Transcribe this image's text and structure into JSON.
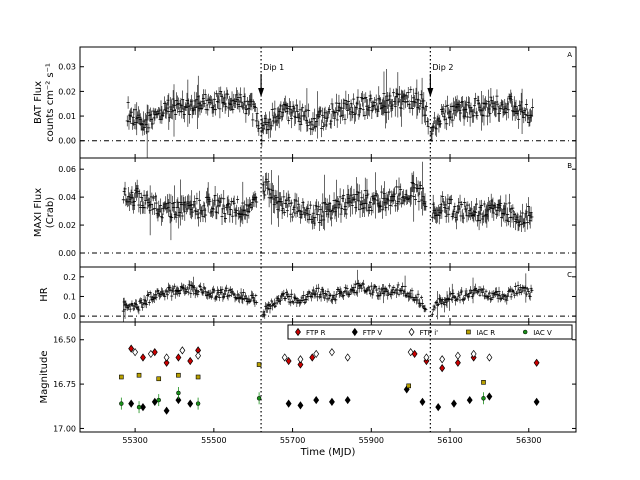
{
  "chart_data": {
    "type": "scatter",
    "xlabel": "Time (MJD)",
    "x_ticks": [
      55300,
      55500,
      55700,
      55900,
      56100,
      56300
    ],
    "xlim": [
      55160,
      56420
    ],
    "dips": [
      {
        "label": "Dip 1",
        "x": 55620
      },
      {
        "label": "Dip 2",
        "x": 56050
      }
    ],
    "panels": [
      {
        "id": "bat",
        "letter": "A",
        "ylabel": [
          "BAT Flux",
          "counts cm⁻² s⁻¹"
        ],
        "ylim": [
          -0.007,
          0.038
        ],
        "y_ticks": [
          "0.00",
          "0.01",
          "0.02",
          "0.03"
        ],
        "baseline": 0.0,
        "segments": [
          {
            "x": [
              55280,
              55320,
              55360,
              55400,
              55440,
              55480,
              55520,
              55560,
              55600,
              55615
            ],
            "y": [
              0.012,
              0.006,
              0.012,
              0.013,
              0.014,
              0.015,
              0.016,
              0.017,
              0.012,
              0.007
            ]
          },
          {
            "x": [
              55622,
              55650,
              55680,
              55720,
              55760,
              55800,
              55840,
              55880,
              55920,
              55960,
              56000,
              56030,
              56045
            ],
            "y": [
              0.003,
              0.01,
              0.012,
              0.01,
              0.008,
              0.011,
              0.013,
              0.014,
              0.015,
              0.016,
              0.017,
              0.016,
              0.008
            ]
          },
          {
            "x": [
              56052,
              56080,
              56120,
              56160,
              56200,
              56240,
              56280,
              56310
            ],
            "y": [
              0.005,
              0.01,
              0.012,
              0.013,
              0.014,
              0.015,
              0.012,
              0.011
            ]
          }
        ]
      },
      {
        "id": "maxi",
        "letter": "B",
        "ylabel": [
          "MAXI Flux",
          "(Crab)"
        ],
        "ylim": [
          -0.01,
          0.068
        ],
        "y_ticks": [
          "0.00",
          "0.02",
          "0.04",
          "0.06"
        ],
        "baseline": 0.0,
        "segments": [
          {
            "x": [
              55270,
              55300,
              55340,
              55380,
              55420,
              55460,
              55500,
              55540,
              55580,
              55610
            ],
            "y": [
              0.045,
              0.04,
              0.035,
              0.03,
              0.033,
              0.032,
              0.035,
              0.03,
              0.033,
              0.036
            ]
          },
          {
            "x": [
              55625,
              55650,
              55680,
              55720,
              55760,
              55800,
              55840,
              55880,
              55920,
              55960,
              56000,
              56040
            ],
            "y": [
              0.05,
              0.04,
              0.035,
              0.03,
              0.028,
              0.032,
              0.035,
              0.038,
              0.036,
              0.04,
              0.045,
              0.04
            ]
          },
          {
            "x": [
              56055,
              56080,
              56120,
              56160,
              56200,
              56240,
              56280,
              56310
            ],
            "y": [
              0.03,
              0.034,
              0.03,
              0.028,
              0.032,
              0.03,
              0.026,
              0.028
            ]
          }
        ]
      },
      {
        "id": "hr",
        "letter": "C",
        "ylabel": [
          "HR"
        ],
        "ylim": [
          -0.03,
          0.25
        ],
        "y_ticks": [
          "0.0",
          "0.1",
          "0.2"
        ],
        "baseline": 0.0,
        "segments": [
          {
            "x": [
              55270,
              55300,
              55340,
              55380,
              55420,
              55460,
              55500,
              55540,
              55580,
              55610
            ],
            "y": [
              0.05,
              0.04,
              0.1,
              0.12,
              0.14,
              0.13,
              0.11,
              0.12,
              0.1,
              0.08
            ]
          },
          {
            "x": [
              55625,
              55650,
              55680,
              55720,
              55760,
              55800,
              55840,
              55880,
              55920,
              55960,
              56000,
              56040
            ],
            "y": [
              0.02,
              0.06,
              0.1,
              0.08,
              0.12,
              0.1,
              0.13,
              0.15,
              0.12,
              0.14,
              0.12,
              0.05
            ]
          },
          {
            "x": [
              56055,
              56080,
              56120,
              56160,
              56200,
              56240,
              56280,
              56310
            ],
            "y": [
              0.03,
              0.08,
              0.1,
              0.12,
              0.11,
              0.1,
              0.14,
              0.12
            ]
          }
        ]
      },
      {
        "id": "mag",
        "letter": "D",
        "ylabel": [
          "Magnitude"
        ],
        "ylim": [
          17.02,
          16.4
        ],
        "y_ticks": [
          "16.50",
          "16.75",
          "17.00"
        ],
        "series": [
          {
            "name": "FTP R",
            "color": "#cc0000",
            "marker": "diamond",
            "x": [
              55290,
              55320,
              55350,
              55380,
              55410,
              55440,
              55460,
              55690,
              55720,
              55750,
              56010,
              56040,
              56080,
              56120,
              56160,
              56320
            ],
            "y": [
              16.55,
              16.6,
              16.57,
              16.63,
              16.6,
              16.62,
              16.56,
              16.62,
              16.64,
              16.6,
              16.58,
              16.62,
              16.66,
              16.63,
              16.6,
              16.63
            ]
          },
          {
            "name": "FTP V",
            "color": "#000000",
            "marker": "diamond",
            "x": [
              55290,
              55320,
              55350,
              55380,
              55410,
              55440,
              55690,
              55720,
              55760,
              55800,
              55840,
              55990,
              56030,
              56070,
              56110,
              56150,
              56200,
              56320
            ],
            "y": [
              16.86,
              16.88,
              16.85,
              16.9,
              16.84,
              16.86,
              16.86,
              16.87,
              16.84,
              16.85,
              16.84,
              16.78,
              16.85,
              16.88,
              16.86,
              16.84,
              16.82,
              16.85
            ]
          },
          {
            "name": "FTP i'",
            "color": "#ffffff",
            "marker": "diamond",
            "x": [
              55300,
              55340,
              55380,
              55420,
              55460,
              55680,
              55720,
              55760,
              55800,
              55840,
              56000,
              56040,
              56080,
              56120,
              56160,
              56200
            ],
            "y": [
              16.57,
              16.58,
              16.6,
              16.56,
              16.59,
              16.6,
              16.61,
              16.58,
              16.57,
              16.6,
              16.57,
              16.6,
              16.61,
              16.59,
              16.58,
              16.6
            ]
          },
          {
            "name": "IAC R",
            "color": "#b8a000",
            "marker": "square",
            "x": [
              55265,
              55310,
              55360,
              55410,
              55460,
              55615,
              55995,
              56185
            ],
            "y": [
              16.71,
              16.7,
              16.72,
              16.7,
              16.71,
              16.64,
              16.76,
              16.74
            ]
          },
          {
            "name": "IAC V",
            "color": "#1a8f1a",
            "marker": "circle",
            "x": [
              55265,
              55310,
              55360,
              55410,
              55460,
              55615,
              56185
            ],
            "y": [
              16.86,
              16.88,
              16.84,
              16.8,
              16.86,
              16.83,
              16.83
            ]
          }
        ]
      }
    ]
  }
}
